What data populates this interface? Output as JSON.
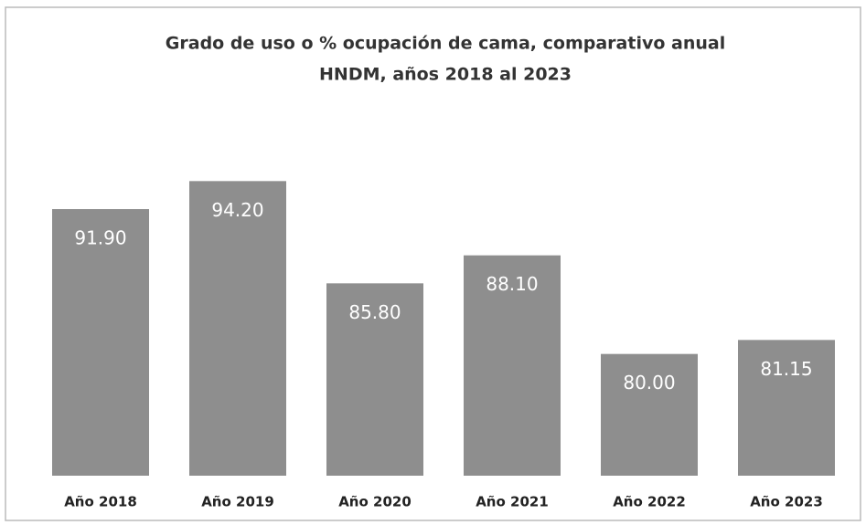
{
  "chart_data": {
    "type": "bar",
    "title": "Grado de uso o % ocupación de cama, comparativo anual",
    "subtitle": "HNDM, años 2018 al 2023",
    "categories": [
      "Año 2018",
      "Año 2019",
      "Año 2020",
      "Año 2021",
      "Año 2022",
      "Año 2023"
    ],
    "values": [
      91.9,
      94.2,
      85.8,
      88.1,
      80,
      81.15
    ],
    "value_labels": [
      "91.90",
      "94.20",
      "85.80",
      "88.10",
      "80.00",
      "81.15"
    ],
    "color": "#8e8e8e",
    "ylim": [
      70,
      100
    ]
  }
}
